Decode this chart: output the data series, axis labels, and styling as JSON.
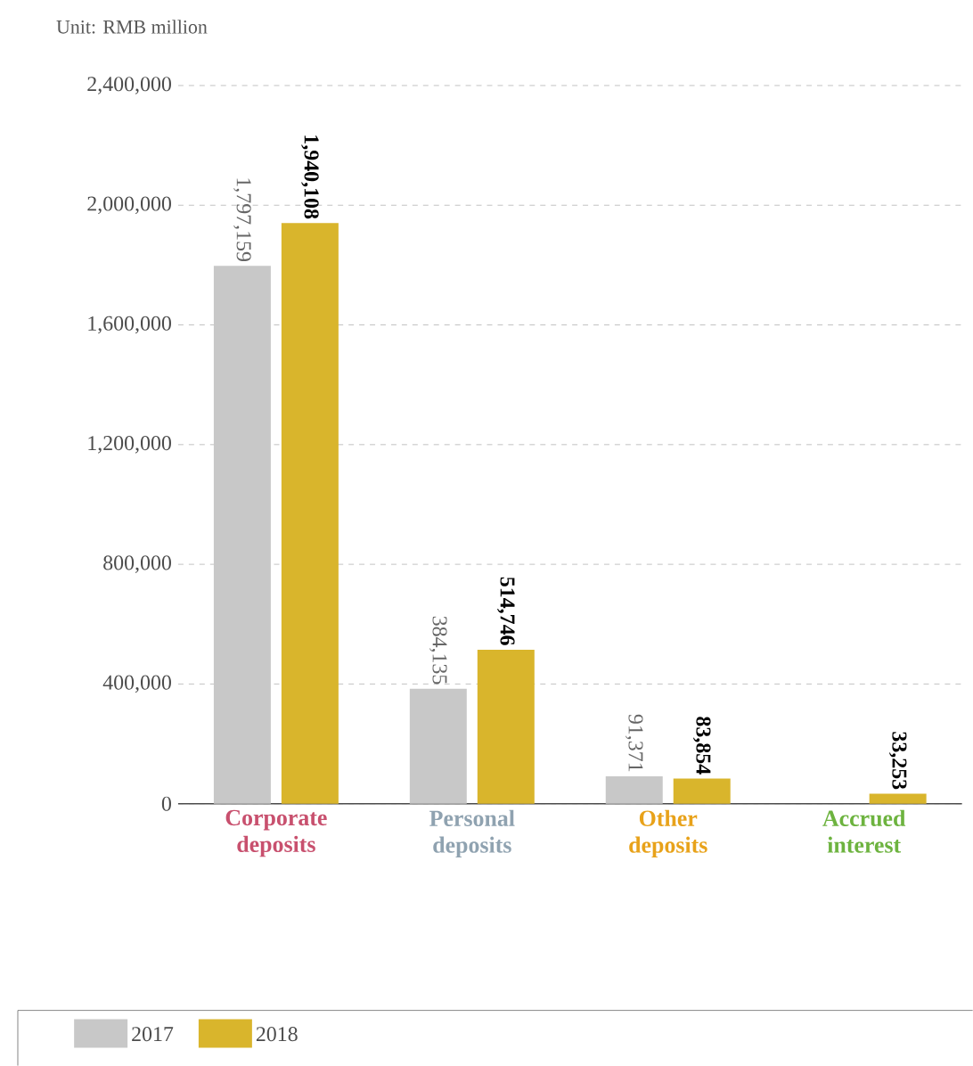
{
  "chart_data": {
    "type": "bar",
    "ylabel": "Unit: RMB million",
    "categories": [
      "Corporate deposits",
      "Personal deposits",
      "Other deposits",
      "Accrued interest"
    ],
    "series": [
      {
        "name": "2017",
        "color": "#c8c8c8",
        "values": [
          1797159,
          384135,
          91371,
          null
        ],
        "value_labels": [
          "1,797,159",
          "384,135",
          "91,371",
          null
        ]
      },
      {
        "name": "2018",
        "color": "#d9b52c",
        "values": [
          1940108,
          514746,
          83854,
          33253
        ],
        "value_labels": [
          "1,940,108",
          "514,746",
          "83,854",
          "33,253"
        ]
      }
    ],
    "ylim": [
      0,
      2400000
    ],
    "yticks": [
      {
        "value": 0,
        "label": "0"
      },
      {
        "value": 400000,
        "label": "400,000"
      },
      {
        "value": 800000,
        "label": "800,000"
      },
      {
        "value": 1200000,
        "label": "1,200,000"
      },
      {
        "value": 1600000,
        "label": "1,600,000"
      },
      {
        "value": 2000000,
        "label": "2,000,000"
      },
      {
        "value": 2400000,
        "label": "2,400,000"
      }
    ],
    "grid": "y",
    "legend": "bottom"
  }
}
